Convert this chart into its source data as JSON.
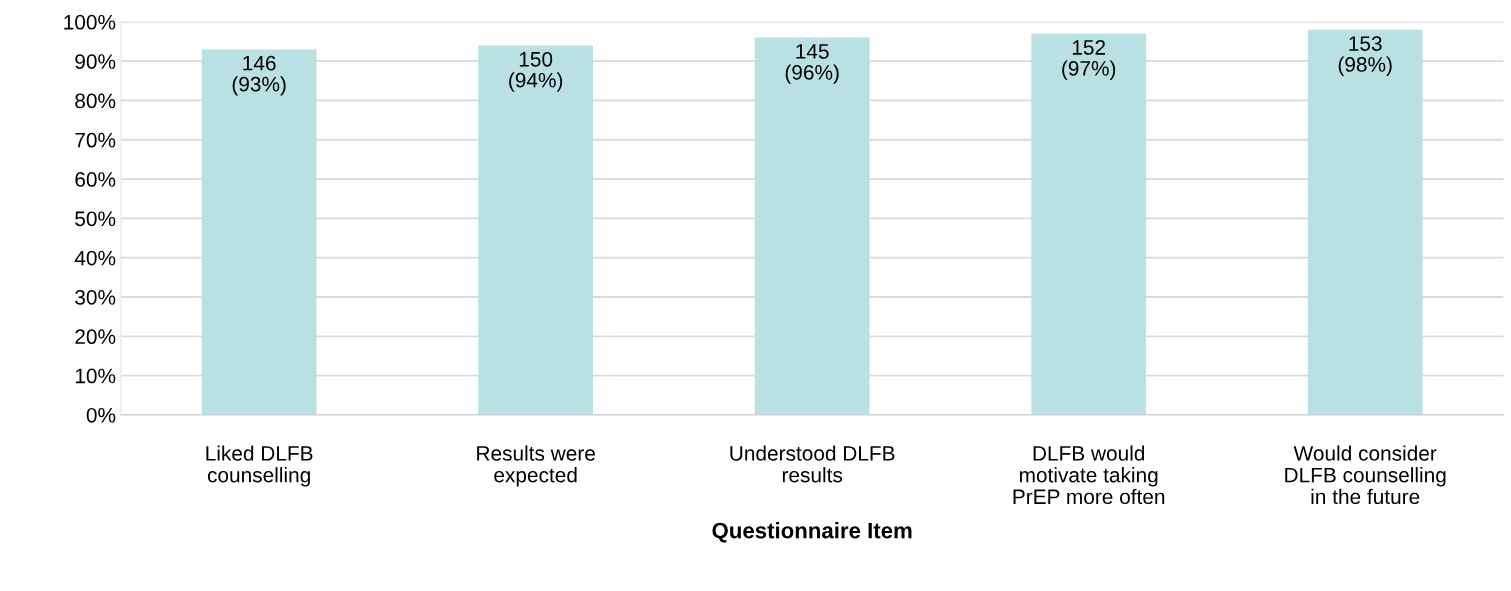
{
  "chart_data": {
    "type": "bar",
    "xlabel": "Questionnaire Item",
    "categories": [
      "Liked DLFB\ncounselling",
      "Results were\nexpected",
      "Understood DLFB\nresults",
      "DLFB would\nmotivate taking\nPrEP more often",
      "Would consider\nDLFB counselling\nin the future"
    ],
    "values": [
      93,
      94,
      96,
      97,
      98
    ],
    "value_labels": [
      "146\n(93%)",
      "150\n(94%)",
      "145\n(96%)",
      "152\n(97%)",
      "153\n(98%)"
    ],
    "color": "#b9e0e2",
    "ylim": [
      0,
      100
    ],
    "yticks": [
      {
        "value": 0,
        "label": "0%"
      },
      {
        "value": 10,
        "label": "10%"
      },
      {
        "value": 20,
        "label": "20%"
      },
      {
        "value": 30,
        "label": "30%"
      },
      {
        "value": 40,
        "label": "40%"
      },
      {
        "value": 50,
        "label": "50%"
      },
      {
        "value": 60,
        "label": "60%"
      },
      {
        "value": 70,
        "label": "70%"
      },
      {
        "value": 80,
        "label": "80%"
      },
      {
        "value": 90,
        "label": "90%"
      },
      {
        "value": 100,
        "label": "100%"
      }
    ],
    "grid": "y",
    "legend": false
  }
}
